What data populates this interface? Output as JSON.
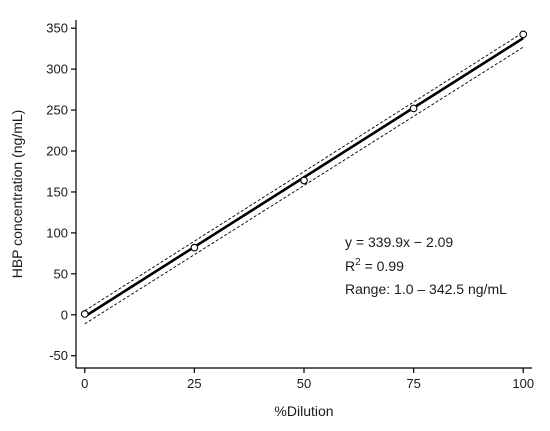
{
  "chart_data": {
    "type": "scatter",
    "title": "",
    "xlabel": "%Dilution",
    "ylabel": "HBP concentration (ng/mL)",
    "xlim": [
      -2,
      102
    ],
    "ylim": [
      -65,
      360
    ],
    "x_ticks": [
      0,
      25,
      50,
      75,
      100
    ],
    "y_ticks": [
      -50,
      0,
      50,
      100,
      150,
      200,
      250,
      300,
      350
    ],
    "grid": false,
    "legend": "none",
    "points": [
      {
        "x": 0,
        "y": 1.0
      },
      {
        "x": 25,
        "y": 82
      },
      {
        "x": 50,
        "y": 164
      },
      {
        "x": 75,
        "y": 252
      },
      {
        "x": 100,
        "y": 342.5
      }
    ],
    "fit_line": {
      "slope": 339.9,
      "intercept": -2.09,
      "x_range": [
        0,
        100
      ]
    },
    "confidence_band": {
      "lower_offset_at_start": -9,
      "lower_offset_at_end": -11,
      "upper_offset_at_start": 7,
      "upper_offset_at_end": 7
    },
    "annotations": {
      "equation": "y = 339.9x − 2.09",
      "r2_prefix": "R",
      "r2_sup": "2",
      "r2_value": " = 0.99",
      "range": "Range: 1.0 – 342.5 ng/mL"
    },
    "colors": {
      "line": "#000000",
      "band": "#000000",
      "marker_edge": "#000000",
      "marker_fill": "#ffffff"
    }
  }
}
